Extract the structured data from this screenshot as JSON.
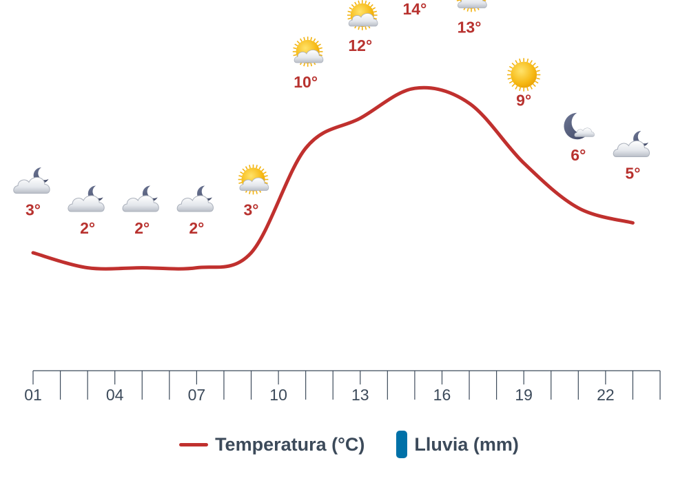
{
  "chart_data": {
    "type": "line",
    "x_hours": [
      1,
      2,
      3,
      4,
      5,
      6,
      7,
      8,
      9,
      10,
      11,
      12,
      13,
      14,
      15,
      16,
      17,
      18,
      19,
      20,
      21,
      22,
      23,
      24
    ],
    "x_tick_labels": [
      "01",
      "04",
      "07",
      "10",
      "13",
      "16",
      "19",
      "22"
    ],
    "x_tick_hours": [
      1,
      4,
      7,
      10,
      13,
      16,
      19,
      22
    ],
    "series": [
      {
        "name": "Temperatura (°C)",
        "values": [
          3,
          2,
          2,
          2,
          3,
          10,
          12,
          14,
          13,
          9,
          6,
          5
        ]
      }
    ],
    "label_hours": [
      1,
      3,
      5,
      7,
      9,
      11,
      13,
      15,
      17,
      19,
      21,
      23
    ],
    "labels": [
      "3°",
      "2°",
      "2°",
      "2°",
      "3°",
      "10°",
      "12°",
      "14°",
      "13°",
      "9°",
      "6°",
      "5°"
    ],
    "icons": [
      "cloud-moon-icon",
      "cloud-moon-icon",
      "cloud-moon-icon",
      "cloud-moon-icon",
      "cloud-sun-icon",
      "cloud-sun-icon",
      "cloud-sun-icon",
      "cloud-sun-icon",
      "cloud-sun-icon",
      "sun-icon",
      "moon-icon",
      "cloud-moon-icon"
    ],
    "legend": [
      {
        "label": "Temperatura (°C)",
        "color": "#c0302e"
      },
      {
        "label": "Lluvia (mm)",
        "color": "#0071a8"
      }
    ],
    "colors": {
      "line": "#c0302e",
      "label": "#b8322f",
      "axis": "#3c4a5a",
      "rain": "#0071a8"
    }
  }
}
